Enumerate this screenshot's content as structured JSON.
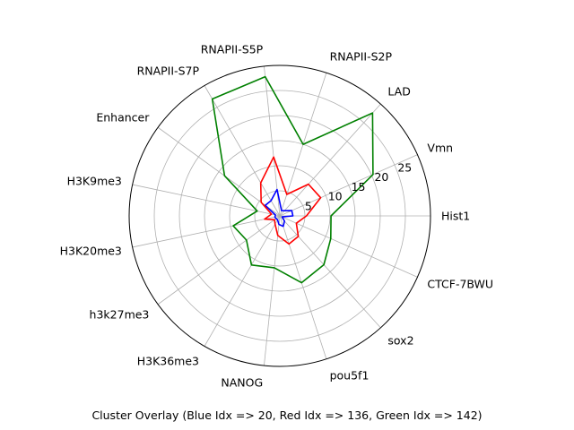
{
  "chart_data": {
    "type": "radar",
    "xlabel": "Cluster Overlay (Blue Idx => 20, Red Idx =>  136, Green Idx => 142)",
    "categories": [
      "Hist1",
      "Vmn",
      "LAD",
      "RNAPII-S2P",
      "RNAPII-S5P",
      "RNAPII-S7P",
      "Enhancer",
      "H3K9me3",
      "H3K20me3",
      "h3k27me3",
      "H3K36me3",
      "NANOG",
      "pou5f1",
      "sox2",
      "CTCF-7BWU"
    ],
    "rlim": [
      0,
      30
    ],
    "rticks": [
      5,
      10,
      15,
      20,
      25
    ],
    "grid": true,
    "series": [
      {
        "color": "#0000ff",
        "values": [
          2.6,
          2.6,
          1.4,
          1.1,
          5.3,
          3.5,
          3.6,
          0.9,
          1.0,
          0.9,
          0.9,
          1.7,
          2.2,
          1.4,
          0.5
        ]
      },
      {
        "color": "#ff0000",
        "values": [
          5.3,
          8.9,
          8.5,
          4.5,
          11.8,
          7.6,
          4.6,
          1.7,
          3.1,
          1.3,
          1.9,
          3.9,
          5.9,
          5.5,
          3.6
        ]
      },
      {
        "color": "#008000",
        "values": [
          10.2,
          20.3,
          27.6,
          15.0,
          27.9,
          26.9,
          13.6,
          4.6,
          9.5,
          8.2,
          11.3,
          10.4,
          14.0,
          13.1,
          11.1
        ]
      }
    ]
  }
}
